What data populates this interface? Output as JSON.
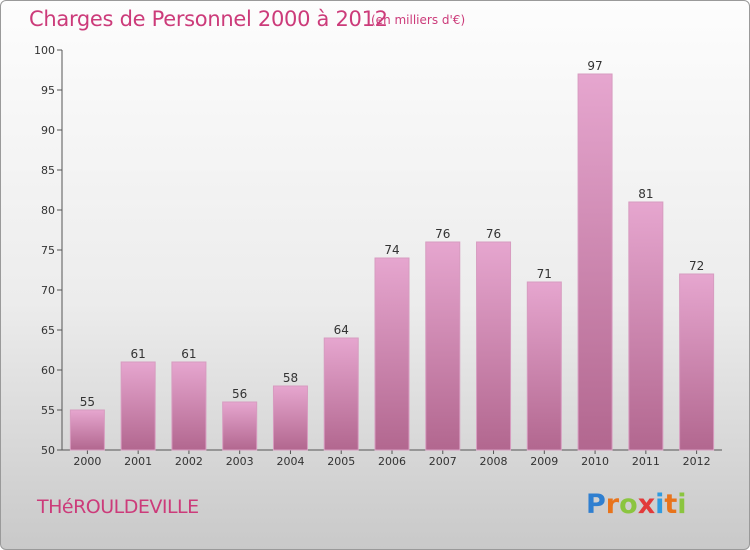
{
  "header": {
    "title": "Charges de Personnel 2000 à 2012",
    "subtitle": "(en milliers d'€)"
  },
  "footer": {
    "place": "THéROULDEVILLE",
    "logo_letters": [
      "P",
      "r",
      "o",
      "x",
      "i",
      "t",
      "i"
    ],
    "logo_colors": [
      "#2f7fd0",
      "#e8741c",
      "#8bc53f",
      "#e23a3a",
      "#2f9be0",
      "#e8741c",
      "#8bc53f"
    ]
  },
  "colors": {
    "bar_top": "#e6a6cf",
    "bar_bottom": "#b2678f",
    "bar_edge": "#d79cc0",
    "text_accent": "#cc3b7a"
  },
  "chart_data": {
    "type": "bar",
    "categories": [
      "2000",
      "2001",
      "2002",
      "2003",
      "2004",
      "2005",
      "2006",
      "2007",
      "2008",
      "2009",
      "2010",
      "2011",
      "2012"
    ],
    "values": [
      55,
      61,
      61,
      56,
      58,
      64,
      74,
      76,
      76,
      71,
      97,
      81,
      72
    ],
    "title": "Charges de Personnel 2000 à 2012",
    "ylim": [
      50,
      100
    ],
    "yticks": [
      50,
      55,
      60,
      65,
      70,
      75,
      80,
      85,
      90,
      95,
      100
    ],
    "grid": false,
    "legend": "none"
  }
}
